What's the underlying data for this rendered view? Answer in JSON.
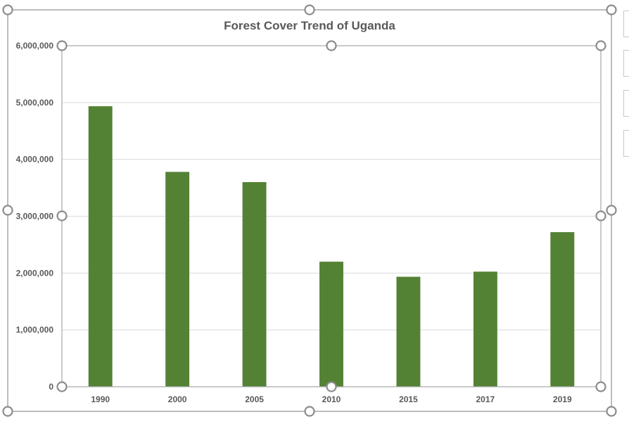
{
  "chart_data": {
    "type": "bar",
    "title": "Forest Cover Trend of Uganda",
    "xlabel": "",
    "ylabel": "",
    "categories": [
      "1990",
      "2000",
      "2005",
      "2010",
      "2015",
      "2017",
      "2019"
    ],
    "values": [
      4935000,
      3780000,
      3600000,
      2200000,
      1935000,
      2025000,
      2720000
    ],
    "ylim": [
      0,
      6000000
    ],
    "yticks": [
      0,
      1000000,
      2000000,
      3000000,
      4000000,
      5000000,
      6000000
    ],
    "ytick_labels": [
      "0",
      "1,000,000",
      "2,000,000",
      "3,000,000",
      "4,000,000",
      "5,000,000",
      "6,000,000"
    ],
    "grid": true,
    "legend": "none",
    "bar_color": "#548235"
  },
  "colors": {
    "bar": "#548235",
    "gridline": "#d9d9d9",
    "frame": "#a6a6a6",
    "handle": "#8c8c8c",
    "text": "#595959"
  }
}
